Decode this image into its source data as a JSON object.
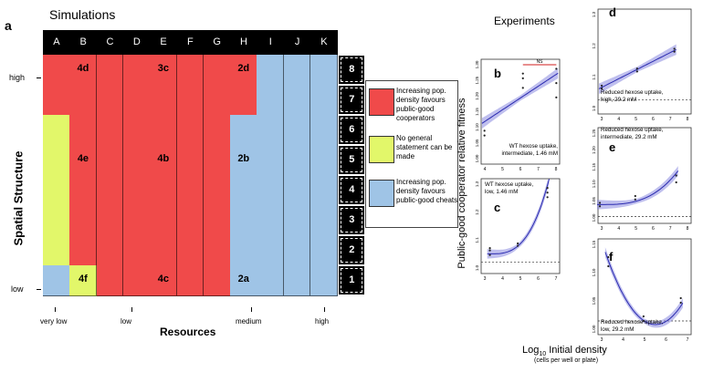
{
  "simulations": {
    "panel_letter": "a",
    "title": "Simulations",
    "columns": [
      "A",
      "B",
      "C",
      "D",
      "E",
      "F",
      "G",
      "H",
      "I",
      "J",
      "K"
    ],
    "rows": [
      "8",
      "7",
      "6",
      "5",
      "4",
      "3",
      "2",
      "1"
    ],
    "y_axis_label": "Spatial Structure",
    "y_ticks": {
      "high": "high",
      "low": "low"
    },
    "x_axis_label": "Resources",
    "x_ticks": [
      "very low",
      "low",
      "medium",
      "high"
    ],
    "cell_labels": [
      {
        "text": "4d",
        "col": 1,
        "row": 0
      },
      {
        "text": "3c",
        "col": 4,
        "row": 0
      },
      {
        "text": "2d",
        "col": 7,
        "row": 0
      },
      {
        "text": "4e",
        "col": 1,
        "row": 3
      },
      {
        "text": "4b",
        "col": 4,
        "row": 3
      },
      {
        "text": "2b",
        "col": 7,
        "row": 3
      },
      {
        "text": "4f",
        "col": 1,
        "row": 7
      },
      {
        "text": "4c",
        "col": 4,
        "row": 7
      },
      {
        "text": "2a",
        "col": 7,
        "row": 7
      }
    ],
    "colors": {
      "red": "#f04a4a",
      "green": "#e2f76a",
      "blue": "#9fc4e6"
    },
    "legend": [
      {
        "color": "#f04a4a",
        "text": "Increasing pop. density favours public-good cooperators"
      },
      {
        "color": "#e2f76a",
        "text": "No general statement can be made"
      },
      {
        "color": "#9fc4e6",
        "text": "Increasing pop. density favours public-good cheats"
      }
    ]
  },
  "experiments": {
    "title": "Experiments",
    "y_axis_label": "Public-good cooperator relative fitness",
    "x_axis_label_base": "Log",
    "x_axis_label_sub": "10",
    "x_axis_label_rest": " Initial density",
    "x_axis_sublabel": "(cells per well or plate)"
  },
  "panels": [
    {
      "letter": "b",
      "caption": [
        "WT hexose uptake,",
        "intermediate, 1.46 mM"
      ],
      "ns": "NS",
      "xticks": [
        "4",
        "5",
        "6",
        "7",
        "8"
      ],
      "yticks": [
        "1.00",
        "1.05",
        "1.10",
        "1.15",
        "1.20",
        "1.25",
        "1.30"
      ]
    },
    {
      "letter": "c",
      "caption": [
        "WT hexose uptake,",
        "low, 1.46 mM"
      ],
      "xticks": [
        "3",
        "4",
        "5",
        "6",
        "7"
      ],
      "yticks": [
        "1.0",
        "1.1",
        "1.2",
        "1.3"
      ]
    },
    {
      "letter": "d",
      "caption": [
        "Reduced hexose uptake,",
        "high, 29.2 mM"
      ],
      "xticks": [
        "3",
        "4",
        "5",
        "6",
        "7",
        "8"
      ],
      "yticks": [
        "1.0",
        "1.1",
        "1.2",
        "1.3"
      ]
    },
    {
      "letter": "e",
      "caption": [
        "Reduced hexose uptake,",
        "intermediate, 29.2 mM"
      ],
      "xticks": [
        "3",
        "4",
        "5",
        "6",
        "7",
        "8"
      ],
      "yticks": [
        "1.00",
        "1.05",
        "1.10",
        "1.15",
        "1.20",
        "1.25"
      ]
    },
    {
      "letter": "f",
      "caption": [
        "Reduced hexose uptake,",
        "low, 29.2 mM"
      ],
      "xticks": [
        "3",
        "4",
        "5",
        "6",
        "7"
      ],
      "yticks": [
        "1.00",
        "1.05",
        "1.10",
        "1.15"
      ]
    }
  ],
  "chart_data": [
    {
      "type": "scatter",
      "panel": "b",
      "x": [
        3.7,
        3.7,
        6,
        6,
        6,
        8,
        8,
        8
      ],
      "y": [
        1.17,
        1.16,
        1.26,
        1.28,
        1.29,
        1.27,
        1.3,
        1.24
      ],
      "fit": "linear",
      "xlim": [
        3.5,
        8.2
      ],
      "ylim": [
        1.1,
        1.32
      ]
    },
    {
      "type": "scatter",
      "panel": "c",
      "x": [
        3,
        3,
        3,
        4.6,
        4.6,
        6.3,
        6.3,
        6.3
      ],
      "y": [
        1.03,
        1.05,
        1.06,
        1.07,
        1.08,
        1.28,
        1.3,
        1.32
      ],
      "fit": "exponential",
      "xlim": [
        2.5,
        7
      ],
      "ylim": [
        0.95,
        1.36
      ]
    },
    {
      "type": "scatter",
      "panel": "d",
      "x": [
        3.2,
        3.2,
        5.1,
        5.1,
        7.1,
        7.1
      ],
      "y": [
        1.04,
        1.05,
        1.1,
        1.11,
        1.17,
        1.18
      ],
      "fit": "linear",
      "xlim": [
        3,
        8
      ],
      "ylim": [
        0.95,
        1.32
      ]
    },
    {
      "type": "scatter",
      "panel": "e",
      "x": [
        3.1,
        3.1,
        5,
        5,
        7.2,
        7.2
      ],
      "y": [
        1.03,
        1.04,
        1.05,
        1.06,
        1.1,
        1.12
      ],
      "fit": "exponential",
      "xlim": [
        3,
        8
      ],
      "ylim": [
        0.98,
        1.26
      ]
    },
    {
      "type": "scatter",
      "panel": "f",
      "x": [
        3,
        3,
        4.7,
        4.7,
        6.5,
        6.5
      ],
      "y": [
        1.14,
        1.12,
        1.01,
        1.0,
        1.04,
        1.05
      ],
      "fit": "quadratic",
      "xlim": [
        2.5,
        7
      ],
      "ylim": [
        0.97,
        1.18
      ]
    }
  ]
}
